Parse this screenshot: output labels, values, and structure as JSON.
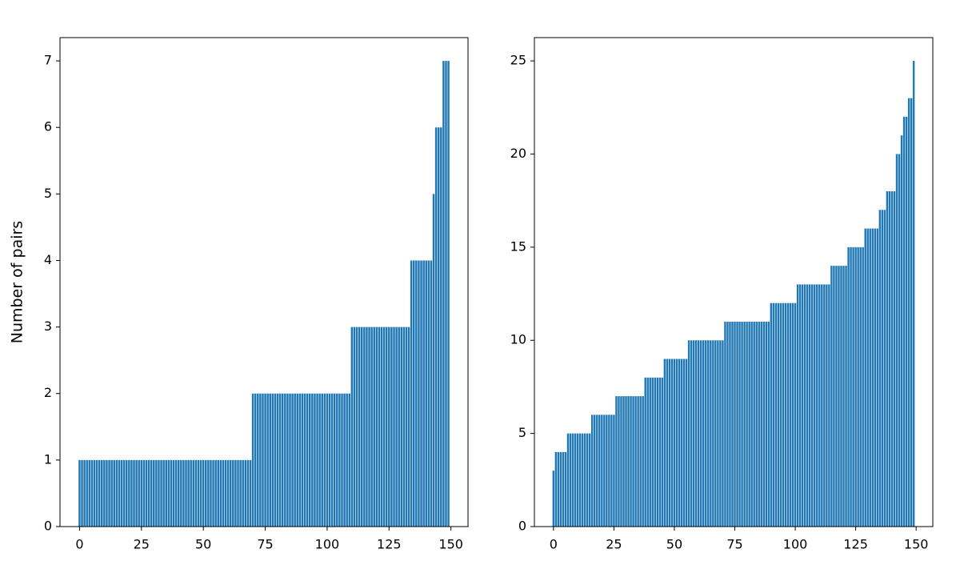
{
  "chart_data": [
    {
      "type": "bar",
      "ylabel": "Number of pairs",
      "color": "#1f77b4",
      "x": [
        0,
        1,
        2,
        3,
        4,
        5,
        6,
        7,
        8,
        9,
        10,
        11,
        12,
        13,
        14,
        15,
        16,
        17,
        18,
        19,
        20,
        21,
        22,
        23,
        24,
        25,
        26,
        27,
        28,
        29,
        30,
        31,
        32,
        33,
        34,
        35,
        36,
        37,
        38,
        39,
        40,
        41,
        42,
        43,
        44,
        45,
        46,
        47,
        48,
        49,
        50,
        51,
        52,
        53,
        54,
        55,
        56,
        57,
        58,
        59,
        60,
        61,
        62,
        63,
        64,
        65,
        66,
        67,
        68,
        69,
        70,
        71,
        72,
        73,
        74,
        75,
        76,
        77,
        78,
        79,
        80,
        81,
        82,
        83,
        84,
        85,
        86,
        87,
        88,
        89,
        90,
        91,
        92,
        93,
        94,
        95,
        96,
        97,
        98,
        99,
        100,
        101,
        102,
        103,
        104,
        105,
        106,
        107,
        108,
        109,
        110,
        111,
        112,
        113,
        114,
        115,
        116,
        117,
        118,
        119,
        120,
        121,
        122,
        123,
        124,
        125,
        126,
        127,
        128,
        129,
        130,
        131,
        132,
        133,
        134,
        135,
        136,
        137,
        138,
        139,
        140,
        141,
        142,
        143,
        144,
        145,
        146,
        147,
        148,
        149
      ],
      "values": [
        1,
        1,
        1,
        1,
        1,
        1,
        1,
        1,
        1,
        1,
        1,
        1,
        1,
        1,
        1,
        1,
        1,
        1,
        1,
        1,
        1,
        1,
        1,
        1,
        1,
        1,
        1,
        1,
        1,
        1,
        1,
        1,
        1,
        1,
        1,
        1,
        1,
        1,
        1,
        1,
        1,
        1,
        1,
        1,
        1,
        1,
        1,
        1,
        1,
        1,
        1,
        1,
        1,
        1,
        1,
        1,
        1,
        1,
        1,
        1,
        1,
        1,
        1,
        1,
        1,
        1,
        1,
        1,
        1,
        1,
        2,
        2,
        2,
        2,
        2,
        2,
        2,
        2,
        2,
        2,
        2,
        2,
        2,
        2,
        2,
        2,
        2,
        2,
        2,
        2,
        2,
        2,
        2,
        2,
        2,
        2,
        2,
        2,
        2,
        2,
        2,
        2,
        2,
        2,
        2,
        2,
        2,
        2,
        2,
        2,
        3,
        3,
        3,
        3,
        3,
        3,
        3,
        3,
        3,
        3,
        3,
        3,
        3,
        3,
        3,
        3,
        3,
        3,
        3,
        3,
        3,
        3,
        3,
        3,
        4,
        4,
        4,
        4,
        4,
        4,
        4,
        4,
        4,
        5,
        6,
        6,
        6,
        7,
        7,
        7
      ],
      "xlim": [
        -7.89,
        156.89
      ],
      "ylim": [
        0,
        7.35
      ],
      "xticks": [
        0,
        25,
        50,
        75,
        100,
        125,
        150
      ],
      "yticks": [
        0,
        1,
        2,
        3,
        4,
        5,
        6,
        7
      ]
    },
    {
      "type": "bar",
      "color": "#1f77b4",
      "x": [
        0,
        1,
        2,
        3,
        4,
        5,
        6,
        7,
        8,
        9,
        10,
        11,
        12,
        13,
        14,
        15,
        16,
        17,
        18,
        19,
        20,
        21,
        22,
        23,
        24,
        25,
        26,
        27,
        28,
        29,
        30,
        31,
        32,
        33,
        34,
        35,
        36,
        37,
        38,
        39,
        40,
        41,
        42,
        43,
        44,
        45,
        46,
        47,
        48,
        49,
        50,
        51,
        52,
        53,
        54,
        55,
        56,
        57,
        58,
        59,
        60,
        61,
        62,
        63,
        64,
        65,
        66,
        67,
        68,
        69,
        70,
        71,
        72,
        73,
        74,
        75,
        76,
        77,
        78,
        79,
        80,
        81,
        82,
        83,
        84,
        85,
        86,
        87,
        88,
        89,
        90,
        91,
        92,
        93,
        94,
        95,
        96,
        97,
        98,
        99,
        100,
        101,
        102,
        103,
        104,
        105,
        106,
        107,
        108,
        109,
        110,
        111,
        112,
        113,
        114,
        115,
        116,
        117,
        118,
        119,
        120,
        121,
        122,
        123,
        124,
        125,
        126,
        127,
        128,
        129,
        130,
        131,
        132,
        133,
        134,
        135,
        136,
        137,
        138,
        139,
        140,
        141,
        142,
        143,
        144,
        145,
        146,
        147,
        148,
        149
      ],
      "values": [
        3,
        4,
        4,
        4,
        4,
        4,
        5,
        5,
        5,
        5,
        5,
        5,
        5,
        5,
        5,
        5,
        6,
        6,
        6,
        6,
        6,
        6,
        6,
        6,
        6,
        6,
        7,
        7,
        7,
        7,
        7,
        7,
        7,
        7,
        7,
        7,
        7,
        7,
        8,
        8,
        8,
        8,
        8,
        8,
        8,
        8,
        9,
        9,
        9,
        9,
        9,
        9,
        9,
        9,
        9,
        9,
        10,
        10,
        10,
        10,
        10,
        10,
        10,
        10,
        10,
        10,
        10,
        10,
        10,
        10,
        10,
        11,
        11,
        11,
        11,
        11,
        11,
        11,
        11,
        11,
        11,
        11,
        11,
        11,
        11,
        11,
        11,
        11,
        11,
        11,
        12,
        12,
        12,
        12,
        12,
        12,
        12,
        12,
        12,
        12,
        12,
        13,
        13,
        13,
        13,
        13,
        13,
        13,
        13,
        13,
        13,
        13,
        13,
        13,
        13,
        14,
        14,
        14,
        14,
        14,
        14,
        14,
        15,
        15,
        15,
        15,
        15,
        15,
        15,
        16,
        16,
        16,
        16,
        16,
        16,
        17,
        17,
        17,
        18,
        18,
        18,
        18,
        20,
        20,
        21,
        22,
        22,
        23,
        23,
        25
      ],
      "xlim": [
        -7.89,
        156.89
      ],
      "ylim": [
        0,
        26.25
      ],
      "xticks": [
        0,
        25,
        50,
        75,
        100,
        125,
        150
      ],
      "yticks": [
        0,
        5,
        10,
        15,
        20,
        25
      ]
    }
  ]
}
